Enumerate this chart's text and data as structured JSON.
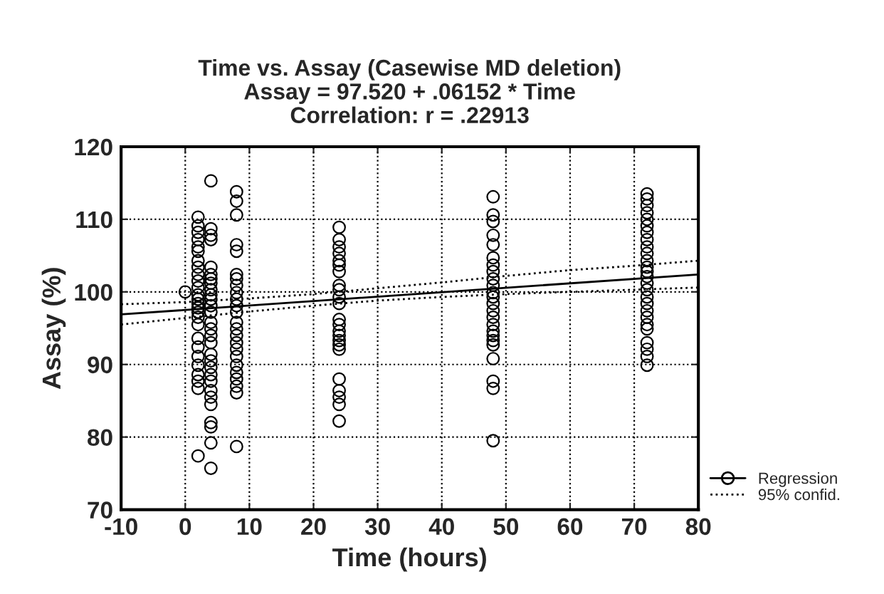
{
  "chart_data": {
    "type": "scatter",
    "title": "Time vs. Assay (Casewise MD deletion)\nAssay = 97.520 + .06152 * Time\nCorrelation: r = .22913",
    "xlabel": "Time (hours)",
    "ylabel": "Assay (%)",
    "xlim": [
      -10,
      80
    ],
    "xticks": [
      -10,
      0,
      10,
      20,
      30,
      40,
      50,
      60,
      70,
      80
    ],
    "ylim": [
      70,
      120
    ],
    "yticks": [
      70,
      80,
      90,
      100,
      110,
      120
    ],
    "grid": true,
    "legend": "bottom right",
    "series": [
      {
        "color": "#000000",
        "marker": "circle",
        "x": [
          0,
          2,
          2,
          2,
          2,
          2,
          2,
          2,
          2,
          2,
          2,
          2,
          2,
          2,
          2,
          2,
          2,
          2,
          2,
          2,
          2,
          2,
          2,
          2,
          2,
          2,
          2,
          4,
          4,
          4,
          4,
          4,
          4,
          4,
          4,
          4,
          4,
          4,
          4,
          4,
          4,
          4,
          4,
          4,
          4,
          4,
          4,
          4,
          4,
          4,
          4,
          4,
          4,
          4,
          4,
          4,
          8,
          8,
          8,
          8,
          8,
          8,
          8,
          8,
          8,
          8,
          8,
          8,
          8,
          8,
          8,
          8,
          8,
          8,
          8,
          8,
          8,
          8,
          8,
          8,
          24,
          24,
          24,
          24,
          24,
          24,
          24,
          24,
          24,
          24,
          24,
          24,
          24,
          24,
          24,
          24,
          24,
          24,
          24,
          24,
          24,
          24,
          24,
          48,
          48,
          48,
          48,
          48,
          48,
          48,
          48,
          48,
          48,
          48,
          48,
          48,
          48,
          48,
          48,
          48,
          48,
          48,
          48,
          48,
          48,
          48,
          48,
          72,
          72,
          72,
          72,
          72,
          72,
          72,
          72,
          72,
          72,
          72,
          72,
          72,
          72,
          72,
          72,
          72,
          72,
          72,
          72,
          72,
          72,
          72,
          72,
          72,
          72
        ],
        "values": [
          100,
          110.3,
          109.1,
          108.2,
          107.2,
          106.2,
          105.6,
          104.3,
          103.4,
          102.4,
          101.5,
          100.6,
          99.6,
          99.0,
          98.4,
          97.8,
          97.2,
          96.5,
          95.5,
          93.6,
          92.4,
          91.1,
          89.9,
          88.6,
          87.7,
          86.7,
          77.4,
          115.3,
          108.7,
          107.8,
          107.2,
          103.4,
          102.4,
          101.8,
          101.2,
          100.3,
          99.6,
          99.0,
          98.1,
          97.2,
          95.8,
          94.9,
          94.0,
          93.0,
          91.4,
          90.5,
          89.6,
          88.6,
          87.7,
          86.4,
          85.5,
          84.5,
          82.0,
          81.4,
          79.2,
          75.7,
          113.8,
          112.5,
          110.6,
          106.5,
          105.6,
          102.4,
          101.8,
          100.9,
          99.9,
          99.0,
          98.1,
          97.2,
          95.8,
          94.9,
          94.0,
          93.0,
          92.1,
          91.1,
          89.9,
          88.9,
          88.0,
          87.0,
          86.1,
          78.7,
          108.9,
          107.2,
          106.2,
          105.3,
          104.3,
          103.7,
          102.8,
          100.9,
          100.3,
          99.3,
          98.4,
          96.2,
          95.5,
          94.6,
          94.0,
          93.3,
          92.7,
          92.1,
          88.0,
          86.4,
          85.5,
          84.5,
          82.2,
          113.1,
          110.6,
          109.7,
          107.8,
          106.5,
          104.7,
          103.7,
          102.8,
          101.8,
          100.9,
          99.9,
          99.3,
          98.4,
          97.4,
          96.5,
          95.5,
          94.6,
          94.0,
          93.3,
          92.7,
          90.8,
          87.7,
          86.7,
          79.5,
          113.5,
          112.8,
          111.9,
          110.9,
          110.0,
          109.1,
          108.2,
          107.2,
          106.2,
          105.3,
          104.3,
          103.4,
          102.8,
          102.1,
          101.2,
          100.3,
          99.3,
          98.4,
          97.4,
          96.5,
          95.5,
          94.9,
          93.0,
          92.1,
          91.1,
          89.9
        ]
      },
      {
        "type": "line",
        "name": "Regression",
        "color": "#000000",
        "line_style": "solid",
        "x": [
          -10,
          80
        ],
        "values": [
          96.9,
          102.4
        ]
      },
      {
        "type": "line",
        "name": "95% confid.",
        "color": "#000000",
        "line_style": "dotted",
        "x": [
          -10,
          0,
          10,
          20,
          30,
          40,
          50,
          60,
          70,
          80
        ],
        "values": [
          98.3,
          98.6,
          99.1,
          99.7,
          100.5,
          101.3,
          102.2,
          103.0,
          103.6,
          104.3
        ]
      },
      {
        "type": "line",
        "color": "#000000",
        "line_style": "dotted",
        "x": [
          -10,
          0,
          10,
          20,
          30,
          40,
          50,
          60,
          70,
          80
        ],
        "values": [
          95.5,
          96.4,
          97.3,
          98.1,
          98.8,
          99.3,
          99.7,
          100.0,
          100.3,
          100.6
        ]
      }
    ]
  }
}
